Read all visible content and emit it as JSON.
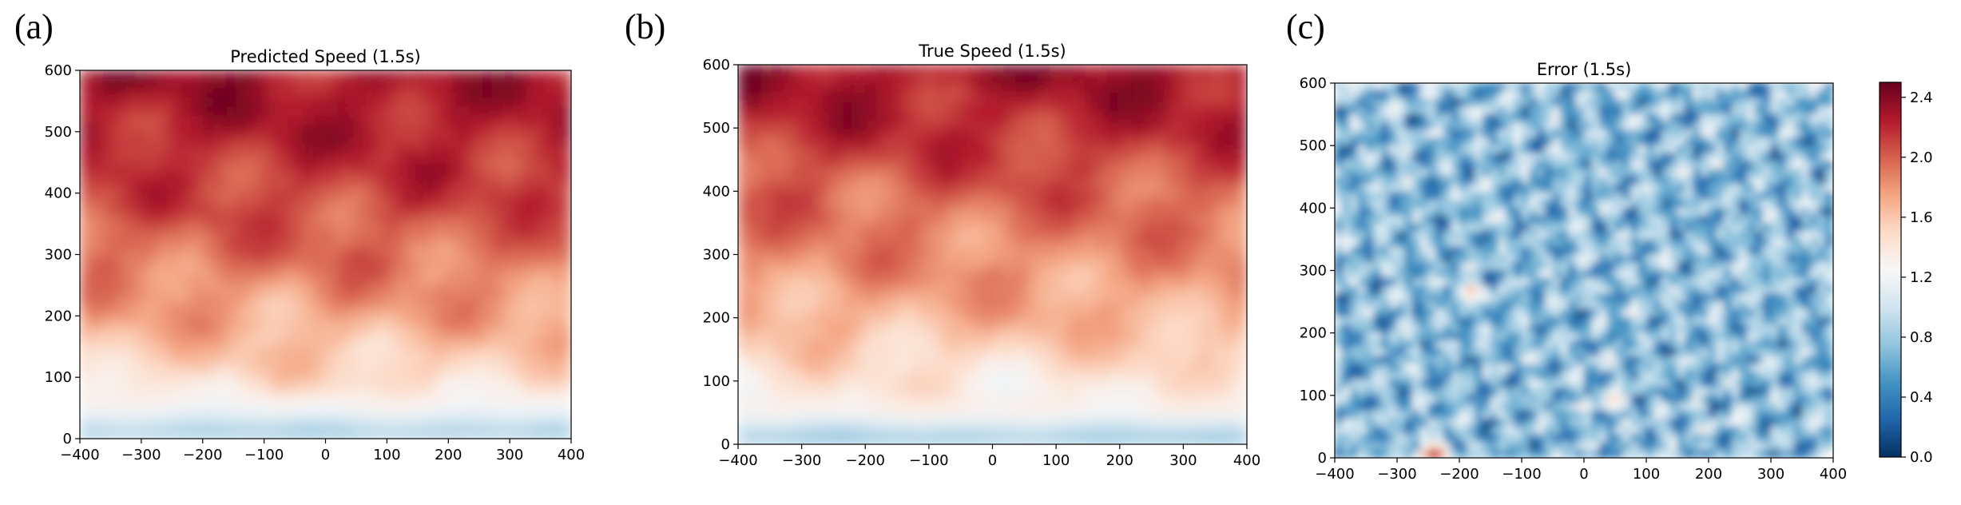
{
  "figure": {
    "panels": [
      {
        "tag": "(a)",
        "title": "Predicted Speed (1.5s)"
      },
      {
        "tag": "(b)",
        "title": "True Speed (1.5s)"
      },
      {
        "tag": "(c)",
        "title": "Error (1.5s)"
      }
    ],
    "colorbar": {
      "ticks": [
        "2.4",
        "2.0",
        "1.6",
        "1.2",
        "0.8",
        "0.4",
        "0.0"
      ],
      "colormap": "RdBu_r"
    }
  },
  "chart_data": [
    {
      "type": "heatmap",
      "title": "Predicted Speed (1.5s)",
      "xlim": [
        -400,
        400
      ],
      "ylim": [
        0,
        600
      ],
      "xticks": [
        -400,
        -300,
        -200,
        -100,
        0,
        100,
        200,
        300,
        400
      ],
      "yticks": [
        0,
        100,
        200,
        300,
        400,
        500,
        600
      ],
      "colormap": "RdBu_r",
      "grid": false,
      "y": [
        0,
        50,
        100,
        200,
        300,
        400,
        500,
        600
      ],
      "row_level": [
        0.3,
        0.5,
        0.6,
        0.7,
        0.78,
        0.84,
        0.9,
        0.92
      ]
    },
    {
      "type": "heatmap",
      "title": "True Speed (1.5s)",
      "xlim": [
        -400,
        400
      ],
      "ylim": [
        0,
        600
      ],
      "xticks": [
        -400,
        -300,
        -200,
        -100,
        0,
        100,
        200,
        300,
        400
      ],
      "yticks": [
        0,
        100,
        200,
        300,
        400,
        500,
        600
      ],
      "colormap": "RdBu_r",
      "grid": false,
      "y": [
        0,
        50,
        100,
        200,
        300,
        400,
        500,
        600
      ],
      "row_level": [
        0.28,
        0.52,
        0.56,
        0.68,
        0.74,
        0.8,
        0.88,
        0.93
      ]
    },
    {
      "type": "heatmap",
      "title": "Error (1.5s)",
      "xlim": [
        -400,
        400
      ],
      "ylim": [
        0,
        600
      ],
      "xticks": [
        -400,
        -300,
        -200,
        -100,
        0,
        100,
        200,
        300,
        400
      ],
      "yticks": [
        0,
        100,
        200,
        300,
        400,
        500,
        600
      ],
      "colormap": "RdBu_r",
      "grid": false,
      "color_range": [
        0.0,
        2.5
      ],
      "colorbar_ticks": [
        0.0,
        0.4,
        0.8,
        1.2,
        1.6,
        2.0,
        2.4
      ],
      "error_hotspots": [
        {
          "x": -180,
          "y": 265,
          "value": 1.8
        },
        {
          "x": 50,
          "y": 90,
          "value": 1.7
        },
        {
          "x": -240,
          "y": 5,
          "value": 2.4
        }
      ]
    }
  ]
}
